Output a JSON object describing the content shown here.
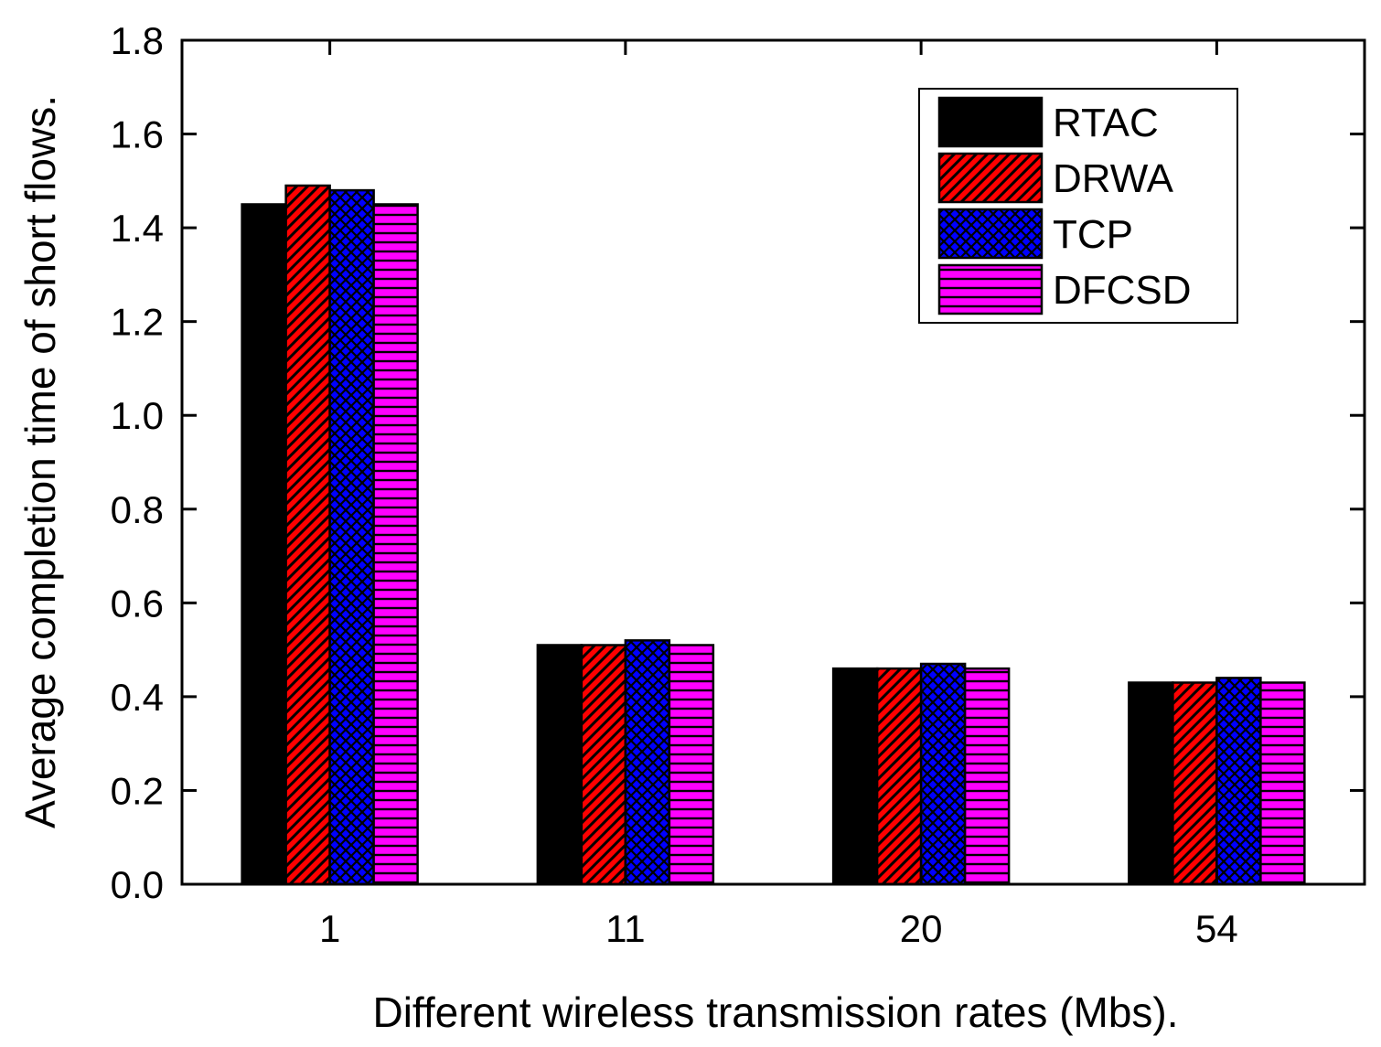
{
  "chart_data": {
    "type": "bar",
    "title": "",
    "xlabel": "Different wireless transmission rates (Mbs).",
    "ylabel": "Average completion time of short flows.",
    "categories": [
      "1",
      "11",
      "20",
      "54"
    ],
    "ylim": [
      0,
      1.8
    ],
    "yticks": [
      "0.0",
      "0.2",
      "0.4",
      "0.6",
      "0.8",
      "1.0",
      "1.2",
      "1.4",
      "1.6",
      "1.8"
    ],
    "grid": false,
    "legend_position": "top-right",
    "series": [
      {
        "name": "RTAC",
        "values": [
          1.45,
          0.51,
          0.46,
          0.43
        ],
        "color": "#000000",
        "pattern": "solid"
      },
      {
        "name": "DRWA",
        "values": [
          1.49,
          0.51,
          0.46,
          0.43
        ],
        "color": "#ff0000",
        "pattern": "diagonal"
      },
      {
        "name": "TCP",
        "values": [
          1.48,
          0.52,
          0.47,
          0.44
        ],
        "color": "#0000ff",
        "pattern": "crosshatch"
      },
      {
        "name": "DFCSD",
        "values": [
          1.45,
          0.51,
          0.46,
          0.43
        ],
        "color": "#ff00ff",
        "pattern": "horizontal"
      }
    ]
  }
}
